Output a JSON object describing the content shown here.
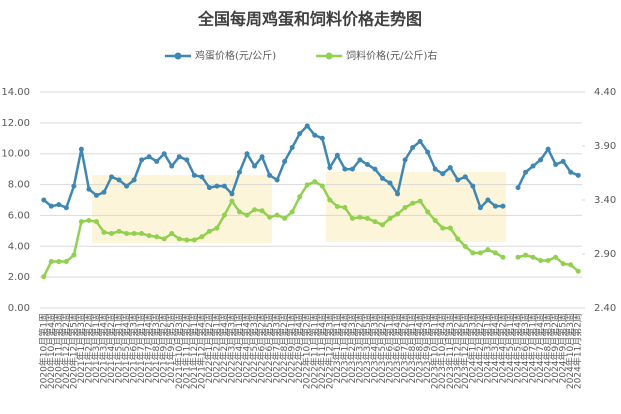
{
  "chart_data": {
    "type": "line",
    "title": "全国每周鸡蛋和饲料价格走势图",
    "categories": [
      "2020年10月第1周",
      "2020年10月第4周",
      "2020年11月第3周",
      "2020年12月第2周",
      "2020年12月第5周",
      "2021年1月第3周",
      "2021年2月第2周",
      "2021年3月第1周",
      "2021年3月第4周",
      "2021年4月第2周",
      "2021年5月第1周",
      "2021年5月第4周",
      "2021年6月第3周",
      "2021年7月第1周",
      "2021年7月第4周",
      "2021年8月第3周",
      "2021年9月第2周",
      "2021年9月第5周",
      "2021年10月第3周",
      "2021年11月第2周",
      "2021年12月第1周",
      "2021年12月第4周",
      "2022年1月第2周",
      "2022年2月第1周",
      "2022年2月第4周",
      "2022年3月第3周",
      "2022年4月第1周",
      "2022年4月第4周",
      "2022年5月第3周",
      "2022年6月第2周",
      "2022年6月第5周",
      "2022年7月第3周",
      "2022年8月第2周",
      "2022年9月第1周",
      "2022年9月第4周",
      "2022年10月第2周",
      "2022年11月第1周",
      "2022年11月第4周",
      "2022年12月第3周",
      "2023年1月第1周",
      "2023年1月第4周",
      "2023年2月第3周",
      "2023年3月第2周",
      "2023年3月第5周",
      "2023年4月第3周",
      "2023年5月第2周",
      "2023年6月第1周",
      "2023年6月第4周",
      "2023年7月第2周",
      "2023年8月第1周",
      "2023年8月第4周",
      "2023年9月第3周",
      "2023年10月第1周",
      "2023年10月第4周",
      "2023年11月第3周",
      "2023年12月第2周",
      "2023年12月第5周",
      "2024年1月第3周",
      "2024年2月第2周",
      "2024年3月第1周",
      "2024年3月第4周",
      "2024年4月第2周",
      "2024年5月第1周",
      "2024年5月第4周",
      "2024年6月第3周",
      "2024年7月第1周",
      "2024年7月第4周",
      "2024年8月第3周",
      "2024年9月第2周",
      "2024年9月第5周",
      "2024年10月第3周",
      "2024年11月第2周"
    ],
    "series": [
      {
        "name": "鸡蛋价格(元/公斤)",
        "color": "#3f87b3",
        "axis": "y",
        "markers": true,
        "values": [
          7.0,
          6.6,
          6.7,
          6.5,
          7.9,
          10.3,
          7.7,
          7.3,
          7.5,
          8.5,
          8.3,
          7.9,
          8.3,
          9.6,
          9.8,
          9.5,
          10.0,
          9.2,
          9.8,
          9.6,
          8.6,
          8.5,
          7.8,
          7.9,
          7.9,
          7.4,
          8.8,
          10.0,
          9.2,
          9.8,
          8.6,
          8.3,
          9.5,
          10.4,
          11.3,
          11.8,
          11.2,
          11.0,
          9.1,
          9.9,
          9.0,
          9.0,
          9.6,
          9.3,
          9.0,
          8.4,
          8.1,
          7.4,
          9.6,
          10.4,
          10.8,
          10.1,
          9.0,
          8.7,
          9.1,
          8.3,
          8.5,
          7.9,
          6.5,
          7.0,
          6.6,
          6.6,
          null,
          7.8,
          8.8,
          9.2,
          9.6,
          10.3,
          9.3,
          9.5,
          8.8,
          8.6
        ]
      },
      {
        "name": "饲料价格(元/公斤)右",
        "color": "#92d050",
        "axis": "y2",
        "markers": true,
        "values": [
          2.69,
          2.83,
          2.83,
          2.83,
          2.89,
          3.2,
          3.21,
          3.2,
          3.1,
          3.09,
          3.11,
          3.09,
          3.09,
          3.09,
          3.07,
          3.06,
          3.04,
          3.09,
          3.04,
          3.03,
          3.03,
          3.06,
          3.11,
          3.14,
          3.26,
          3.39,
          3.29,
          3.26,
          3.31,
          3.3,
          3.24,
          3.26,
          3.23,
          3.29,
          3.43,
          3.54,
          3.57,
          3.53,
          3.4,
          3.34,
          3.33,
          3.23,
          3.24,
          3.23,
          3.2,
          3.17,
          3.23,
          3.27,
          3.33,
          3.37,
          3.39,
          3.29,
          3.21,
          3.14,
          3.14,
          3.04,
          2.97,
          2.91,
          2.91,
          2.94,
          2.91,
          2.87,
          null,
          2.87,
          2.89,
          2.87,
          2.84,
          2.84,
          2.87,
          2.81,
          2.8,
          2.74
        ]
      }
    ],
    "ylim": [
      0,
      14
    ],
    "yticks": [
      {
        "value": 0,
        "label": "0.00"
      },
      {
        "value": 2,
        "label": "2.00"
      },
      {
        "value": 4,
        "label": "4.00"
      },
      {
        "value": 6,
        "label": "6.00"
      },
      {
        "value": 8,
        "label": "8.00"
      },
      {
        "value": 10,
        "label": "10.00"
      },
      {
        "value": 12,
        "label": "12.00"
      },
      {
        "value": 14,
        "label": "14.00"
      }
    ],
    "y2lim": [
      2.4,
      4.4
    ],
    "y2ticks": [
      {
        "value": 2.4,
        "label": "2.40"
      },
      {
        "value": 2.9,
        "label": "2.90"
      },
      {
        "value": 3.4,
        "label": "3.40"
      },
      {
        "value": 3.9,
        "label": "3.90"
      },
      {
        "value": 4.4,
        "label": "4.40"
      }
    ],
    "grid": true,
    "legend": "top"
  }
}
